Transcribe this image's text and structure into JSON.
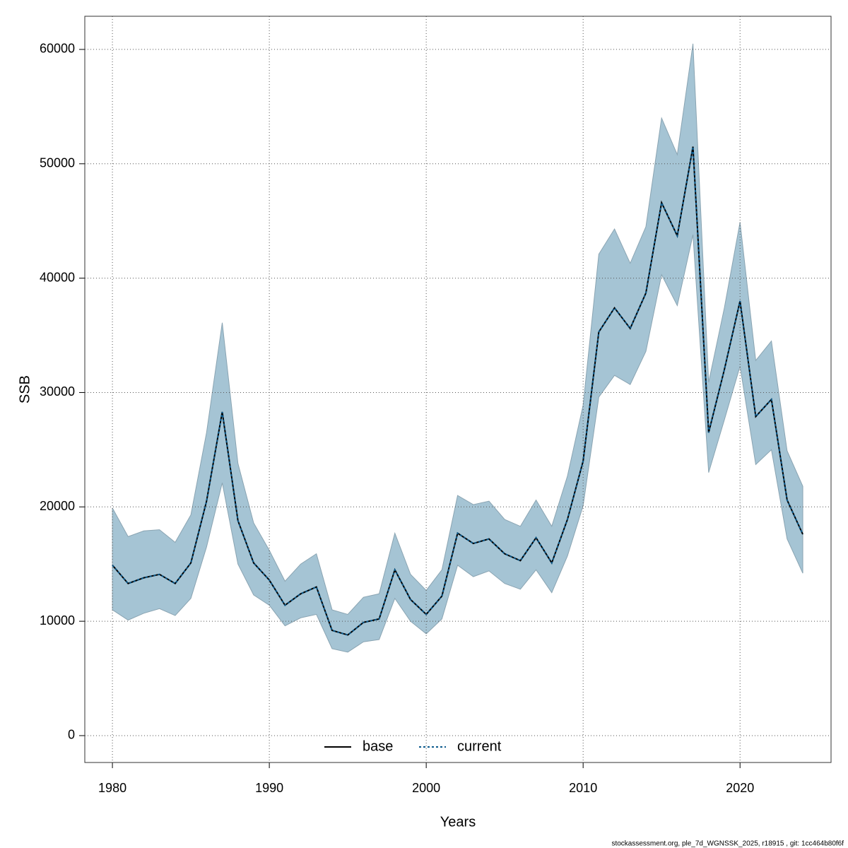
{
  "chart_data": {
    "type": "line",
    "xlabel": "Years",
    "ylabel": "SSB",
    "footer": "stockassessment.org, ple_7d_WGNSSK_2025, r18915 , git: 1cc464b80f6f",
    "x": [
      1980,
      1981,
      1982,
      1983,
      1984,
      1985,
      1986,
      1987,
      1988,
      1989,
      1990,
      1991,
      1992,
      1993,
      1994,
      1995,
      1996,
      1997,
      1998,
      1999,
      2000,
      2001,
      2002,
      2003,
      2004,
      2005,
      2006,
      2007,
      2008,
      2009,
      2010,
      2011,
      2012,
      2013,
      2014,
      2015,
      2016,
      2017,
      2018,
      2019,
      2020,
      2021,
      2022,
      2023,
      2024
    ],
    "series": [
      {
        "name": "base",
        "color": "#000000",
        "values": [
          14900,
          13300,
          13800,
          14100,
          13300,
          15100,
          20500,
          28300,
          18800,
          15100,
          13600,
          11400,
          12400,
          13000,
          9200,
          8800,
          9900,
          10200,
          14500,
          11900,
          10600,
          12200,
          17700,
          16800,
          17200,
          15900,
          15300,
          17300,
          15100,
          18900,
          24000,
          35300,
          37400,
          35600,
          38700,
          46600,
          43700,
          51500,
          26500,
          32000,
          38000,
          27900,
          29400,
          20600,
          17600
        ]
      },
      {
        "name": "current",
        "color": "#0b5a8c",
        "values": [
          14900,
          13300,
          13800,
          14100,
          13300,
          15100,
          20500,
          28300,
          18800,
          15100,
          13600,
          11400,
          12400,
          13000,
          9200,
          8800,
          9900,
          10200,
          14500,
          11900,
          10600,
          12200,
          17700,
          16800,
          17200,
          15900,
          15300,
          17300,
          15100,
          18900,
          24000,
          35300,
          37400,
          35600,
          38700,
          46600,
          43700,
          51500,
          26500,
          32000,
          38000,
          27900,
          29400,
          20600,
          17600
        ]
      }
    ],
    "band": {
      "color": "#a5c4d4",
      "upper": [
        19900,
        17400,
        17900,
        18000,
        16900,
        19300,
        26500,
        36100,
        23800,
        18600,
        16200,
        13500,
        15000,
        15900,
        11000,
        10600,
        12100,
        12400,
        17700,
        14100,
        12700,
        14500,
        21000,
        20200,
        20500,
        18900,
        18300,
        20600,
        18300,
        22700,
        28900,
        42100,
        44300,
        41300,
        44500,
        54000,
        50800,
        60500,
        30900,
        37400,
        44900,
        32800,
        34500,
        24900,
        21800
      ],
      "lower": [
        11000,
        10100,
        10700,
        11100,
        10500,
        12000,
        16500,
        22100,
        15000,
        12300,
        11400,
        9600,
        10300,
        10600,
        7600,
        7300,
        8200,
        8400,
        12000,
        10000,
        8900,
        10200,
        14900,
        13900,
        14400,
        13300,
        12800,
        14500,
        12500,
        15700,
        20100,
        29600,
        31500,
        30700,
        33600,
        40300,
        37600,
        43800,
        23000,
        27600,
        32300,
        23700,
        25000,
        17200,
        14200
      ]
    },
    "xlim": [
      1978.24,
      2025.8
    ],
    "ylim": [
      -2350,
      62900
    ],
    "xticks": [
      1980,
      1990,
      2000,
      2010,
      2020
    ],
    "yticks": [
      0,
      10000,
      20000,
      30000,
      40000,
      50000,
      60000
    ],
    "grid": true,
    "legend": "bottom"
  }
}
